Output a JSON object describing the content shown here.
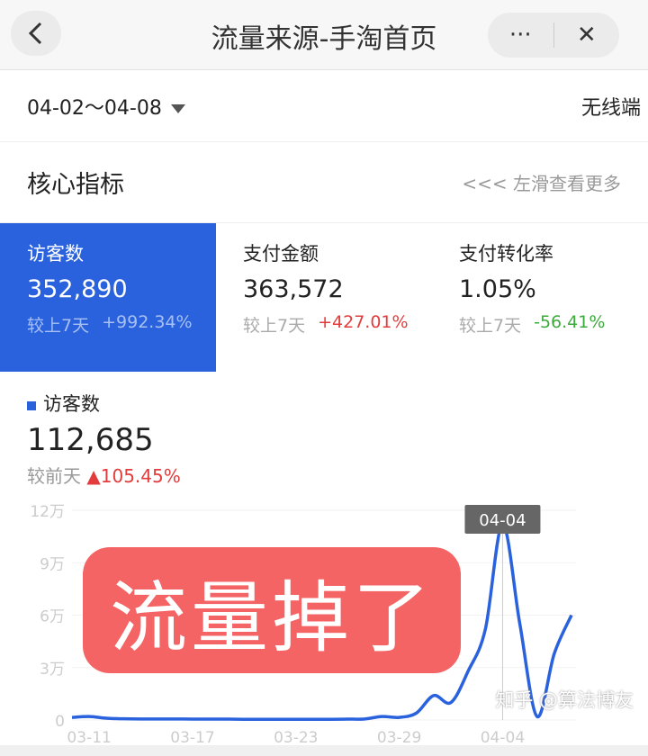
{
  "nav": {
    "title": "流量来源-手淘首页",
    "more_icon": "···",
    "close_icon": "✕"
  },
  "filter": {
    "date_range": "04-02～04-08",
    "terminal": "无线端"
  },
  "core": {
    "title": "核心指标",
    "hint": "<<< 左滑查看更多"
  },
  "metrics": [
    {
      "label": "访客数",
      "value": "352,890",
      "compare_label": "较上7天",
      "change": "+992.34%",
      "active": true
    },
    {
      "label": "支付金额",
      "value": "363,572",
      "compare_label": "较上7天",
      "change": "+427.01%"
    },
    {
      "label": "支付转化率",
      "value": "1.05%",
      "compare_label": "较上7天",
      "change": "-56.41%"
    }
  ],
  "detail": {
    "label": "访客数",
    "value": "112,685",
    "compare_label": "较前天",
    "change": "▲105.45%"
  },
  "overlay": {
    "text": "流量掉了"
  },
  "watermark": "知乎 @算法博友",
  "colors": {
    "accent": "#2a62de",
    "up": "#e23c3c",
    "down": "#3cab3c",
    "overlay": "#f44e4e"
  },
  "chart_data": {
    "type": "line",
    "x": [
      "03-10",
      "03-11",
      "03-12",
      "03-13",
      "03-14",
      "03-15",
      "03-16",
      "03-17",
      "03-18",
      "03-19",
      "03-20",
      "03-21",
      "03-22",
      "03-23",
      "03-24",
      "03-25",
      "03-26",
      "03-27",
      "03-28",
      "03-29",
      "03-30",
      "03-31",
      "04-01",
      "04-02",
      "04-03",
      "04-04",
      "04-05",
      "04-06",
      "04-07",
      "04-08"
    ],
    "values": [
      1500,
      2000,
      1000,
      700,
      600,
      600,
      600,
      500,
      500,
      500,
      400,
      400,
      400,
      400,
      400,
      400,
      500,
      600,
      2000,
      1500,
      4000,
      14000,
      10000,
      28000,
      52000,
      112000,
      55000,
      2000,
      38000,
      60000
    ],
    "x_ticks": [
      "03-11",
      "03-17",
      "03-23",
      "03-29",
      "04-04"
    ],
    "y_ticks": [
      "0",
      "3万",
      "6万",
      "9万",
      "12万"
    ],
    "ylim": [
      0,
      120000
    ],
    "grid": true,
    "tooltip": "04-04"
  }
}
